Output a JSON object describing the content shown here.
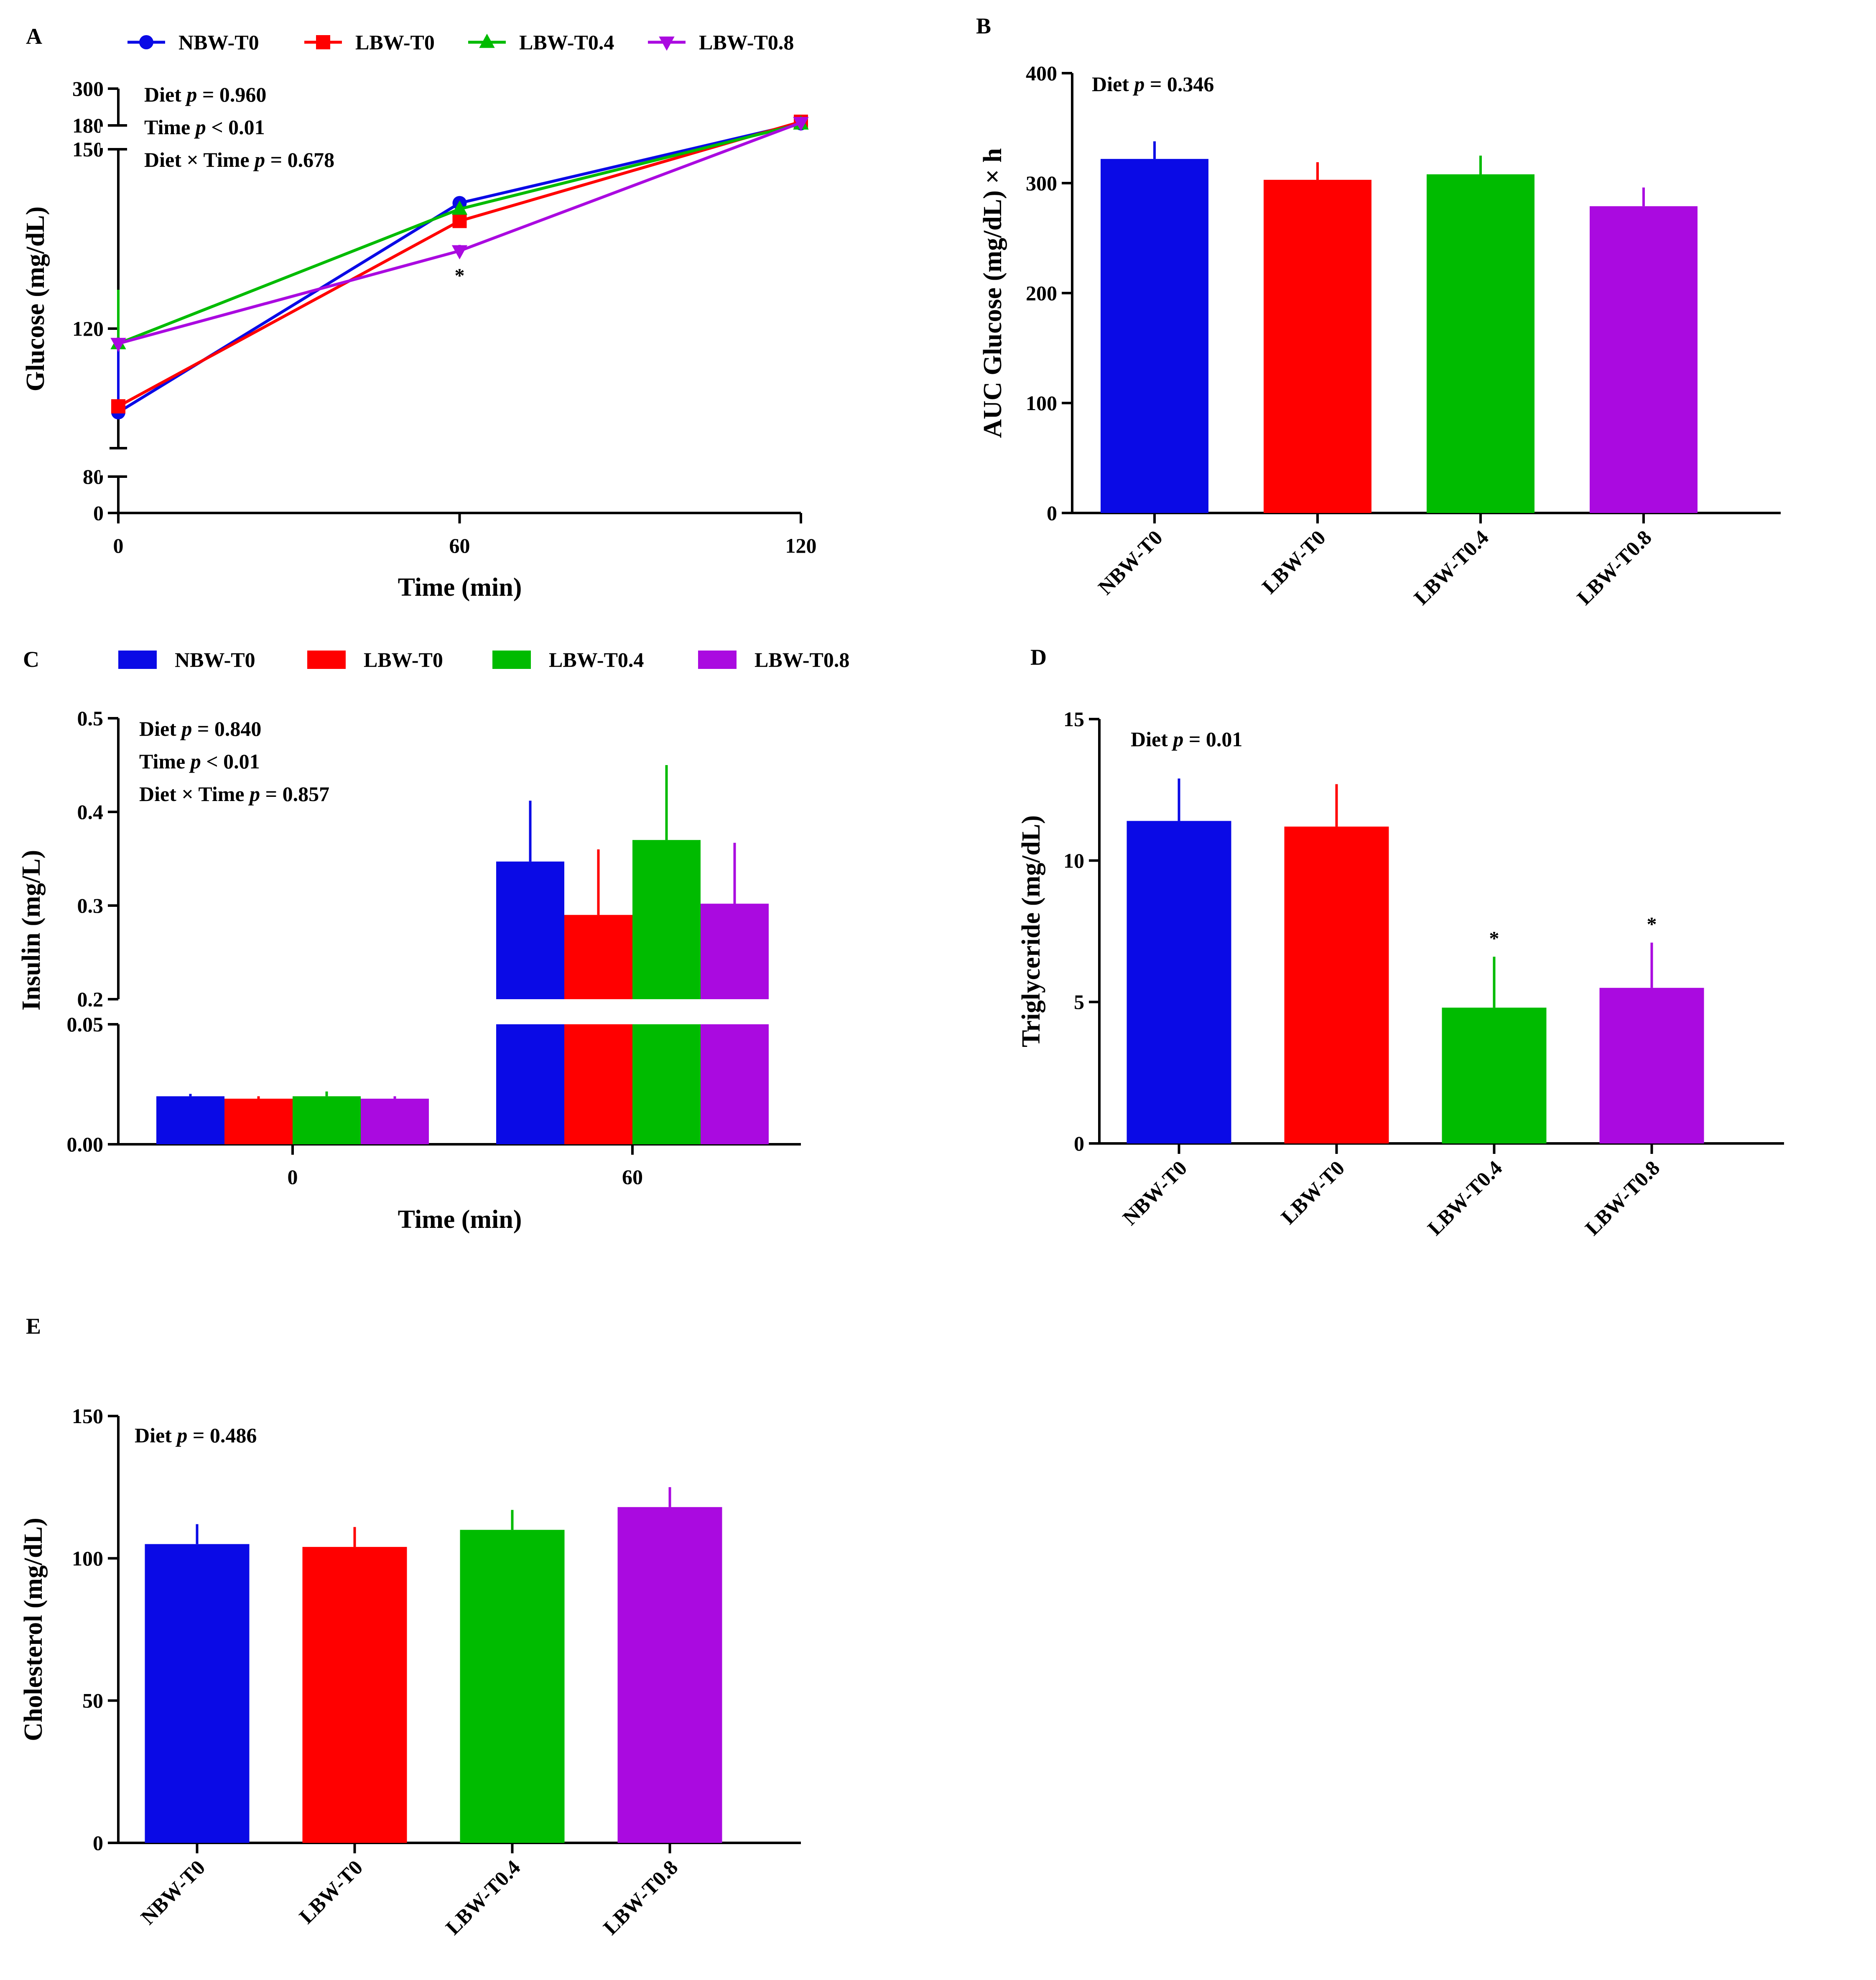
{
  "colors": {
    "NBW-T0": "#0a0ae6",
    "LBW-T0": "#ff0000",
    "LBW-T0.4": "#00bb00",
    "LBW-T0.8": "#aa0ae0"
  },
  "chart_data": [
    {
      "panel": "A",
      "type": "line",
      "xlabel": "Time (min)",
      "ylabel": "Glucose (mg/dL)",
      "x": [
        0,
        60,
        120
      ],
      "xticks": [
        "0",
        "60",
        "120"
      ],
      "yticks_lower": [
        "0",
        "80"
      ],
      "yticks_middle": [
        "120",
        "150"
      ],
      "yticks_upper": [
        "180",
        "300"
      ],
      "ylim": [
        0,
        300
      ],
      "y_breaks": [
        [
          80,
          100
        ],
        [
          150,
          180
        ]
      ],
      "annotations": [
        "Diet p = 0.960",
        "Time p < 0.01",
        "Diet × Time p = 0.678"
      ],
      "stat_lines": [
        {
          "label": "Diet",
          "p_symbol": "p",
          "value": "= 0.960"
        },
        {
          "label": "Time",
          "p_symbol": "p",
          "value": "< 0.01"
        },
        {
          "label": "Diet × Time",
          "p_symbol": "p",
          "value": "= 0.678"
        }
      ],
      "significance": [
        {
          "x": 60,
          "label": "*"
        }
      ],
      "legend": [
        "NBW-T0",
        "LBW-T0",
        "LBW-T0.4",
        "LBW-T0.8"
      ],
      "series": [
        {
          "name": "NBW-T0",
          "values": [
            106,
            141,
            187
          ],
          "errors": [
            12,
            1,
            2
          ]
        },
        {
          "name": "LBW-T0",
          "values": [
            107,
            138,
            192
          ],
          "errors": [
            1,
            1,
            2
          ]
        },
        {
          "name": "LBW-T0.4",
          "values": [
            117.5,
            140,
            185
          ],
          "errors": [
            9,
            1,
            2
          ]
        },
        {
          "name": "LBW-T0.8",
          "values": [
            117.5,
            133,
            189
          ],
          "errors": [
            1,
            1,
            2
          ]
        }
      ]
    },
    {
      "panel": "B",
      "type": "bar",
      "xlabel": "",
      "ylabel": "AUC Glucose (mg/dL) × h",
      "categories": [
        "NBW-T0",
        "LBW-T0",
        "LBW-T0.4",
        "LBW-T0.8"
      ],
      "values": [
        322,
        303,
        308,
        279
      ],
      "errors": [
        16,
        16,
        17,
        17
      ],
      "ylim": [
        0,
        400
      ],
      "yticks": [
        "0",
        "100",
        "200",
        "300",
        "400"
      ],
      "annotations": [
        "Diet p = 0.346"
      ],
      "stat_lines": [
        {
          "label": "Diet",
          "p_symbol": "p",
          "value": "= 0.346"
        }
      ]
    },
    {
      "panel": "C",
      "type": "bar",
      "xlabel": "Time (min)",
      "ylabel": "Insulin (mg/L)",
      "categories": [
        "0",
        "60"
      ],
      "ylim": [
        0,
        0.5
      ],
      "y_breaks": [
        [
          0.05,
          0.2
        ]
      ],
      "yticks_lower": [
        "0.00",
        "0.05"
      ],
      "yticks_upper": [
        "0.2",
        "0.3",
        "0.4",
        "0.5"
      ],
      "legend": [
        "NBW-T0",
        "LBW-T0",
        "LBW-T0.4",
        "LBW-T0.8"
      ],
      "series": [
        {
          "name": "NBW-T0",
          "values": [
            0.02,
            0.347
          ],
          "errors": [
            0.001,
            0.065
          ]
        },
        {
          "name": "LBW-T0",
          "values": [
            0.019,
            0.29
          ],
          "errors": [
            0.001,
            0.07
          ]
        },
        {
          "name": "LBW-T0.4",
          "values": [
            0.02,
            0.37
          ],
          "errors": [
            0.002,
            0.08
          ]
        },
        {
          "name": "LBW-T0.8",
          "values": [
            0.019,
            0.302
          ],
          "errors": [
            0.001,
            0.065
          ]
        }
      ],
      "annotations": [
        "Diet p = 0.840",
        "Time p < 0.01",
        "Diet × Time p = 0.857"
      ],
      "stat_lines": [
        {
          "label": "Diet",
          "p_symbol": "p",
          "value": "= 0.840"
        },
        {
          "label": "Time",
          "p_symbol": "p",
          "value": "< 0.01"
        },
        {
          "label": "Diet × Time",
          "p_symbol": "p",
          "value": "= 0.857"
        }
      ]
    },
    {
      "panel": "D",
      "type": "bar",
      "xlabel": "",
      "ylabel": "Triglyceride (mg/dL)",
      "categories": [
        "NBW-T0",
        "LBW-T0",
        "LBW-T0.4",
        "LBW-T0.8"
      ],
      "values": [
        11.4,
        11.2,
        4.8,
        5.5
      ],
      "errors": [
        1.5,
        1.5,
        1.8,
        1.6
      ],
      "significance": [
        "",
        "",
        "*",
        "*"
      ],
      "ylim": [
        0,
        15
      ],
      "yticks": [
        "0",
        "5",
        "10",
        "15"
      ],
      "annotations": [
        "Diet p = 0.01"
      ],
      "stat_lines": [
        {
          "label": "Diet",
          "p_symbol": "p",
          "value": "= 0.01"
        }
      ]
    },
    {
      "panel": "E",
      "type": "bar",
      "xlabel": "",
      "ylabel": "Cholesterol (mg/dL)",
      "categories": [
        "NBW-T0",
        "LBW-T0",
        "LBW-T0.4",
        "LBW-T0.8"
      ],
      "values": [
        105,
        104,
        110,
        118
      ],
      "errors": [
        7,
        7,
        7,
        7
      ],
      "ylim": [
        0,
        150
      ],
      "yticks": [
        "0",
        "50",
        "100",
        "150"
      ],
      "annotations": [
        "Diet p = 0.486"
      ],
      "stat_lines": [
        {
          "label": "Diet",
          "p_symbol": "p",
          "value": "= 0.486"
        }
      ]
    }
  ]
}
